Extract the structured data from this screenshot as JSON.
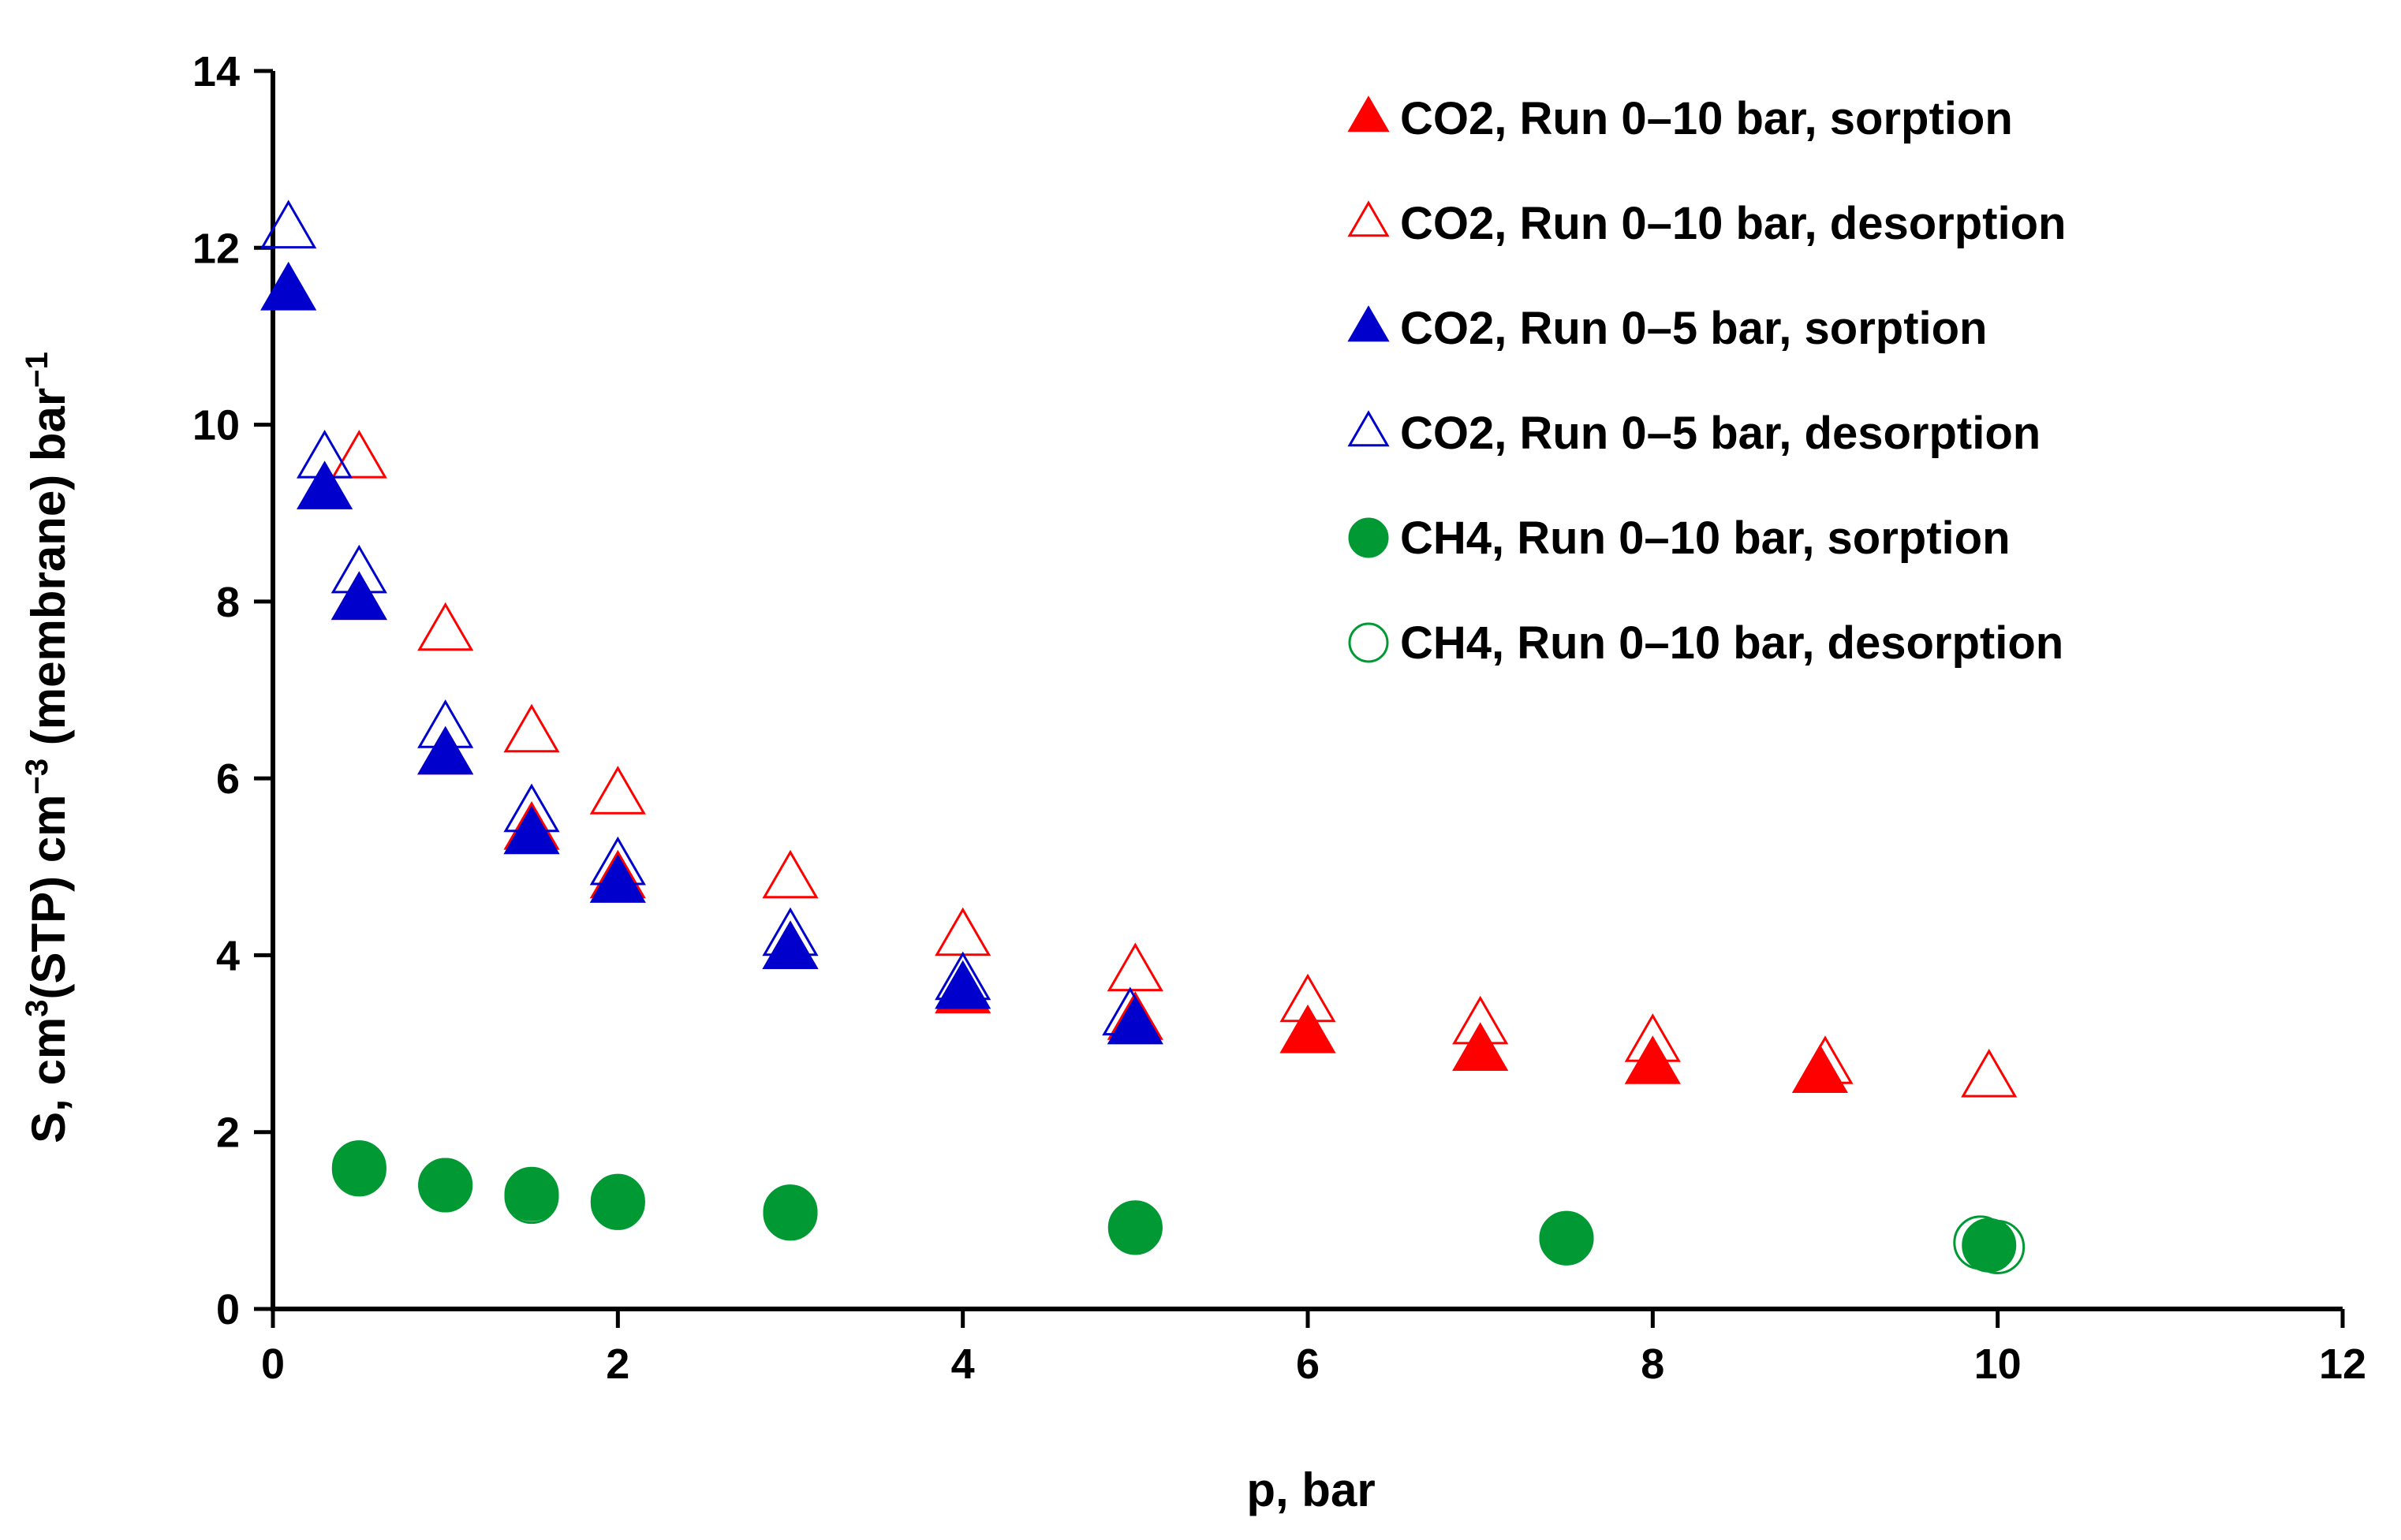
{
  "chart_data": {
    "type": "scatter",
    "title": "",
    "xlabel": "p, bar",
    "ylabel": {
      "part1": "S, cm",
      "sup1": "3",
      "part2": "(STP) cm",
      "sup2": "−3",
      "part3": " (membrane) bar",
      "sup3": "−1"
    },
    "xlim": [
      0,
      12
    ],
    "ylim": [
      0,
      14
    ],
    "xticks": [
      0,
      2,
      4,
      6,
      8,
      10,
      12
    ],
    "yticks": [
      0,
      2,
      4,
      6,
      8,
      10,
      12,
      14
    ],
    "grid": false,
    "legend_position": "top-right",
    "series": [
      {
        "name": "CO2, Run 0–10 bar, sorption",
        "marker": "triangle",
        "filled": true,
        "color": "#ff0000",
        "x": [
          0.5,
          1.0,
          1.5,
          2.0,
          3.0,
          4.0,
          5.0,
          6.0,
          7.0,
          8.0,
          8.97
        ],
        "y": [
          8.0,
          6.25,
          5.4,
          4.85,
          4.05,
          3.55,
          3.25,
          3.1,
          2.9,
          2.75,
          2.65
        ]
      },
      {
        "name": "CO2, Run 0–10 bar, desorption",
        "marker": "triangle",
        "filled": false,
        "color": "#ff0000",
        "x": [
          0.5,
          1.0,
          1.5,
          2.0,
          3.0,
          4.0,
          5.0,
          6.0,
          7.0,
          8.0,
          9.0,
          9.95
        ],
        "y": [
          9.6,
          7.65,
          6.5,
          5.8,
          4.85,
          4.2,
          3.8,
          3.45,
          3.2,
          3.0,
          2.75,
          2.6
        ]
      },
      {
        "name": "CO2, Run 0–5 bar, sorption",
        "marker": "triangle",
        "filled": true,
        "color": "#0000cc",
        "x": [
          0.09,
          0.3,
          0.5,
          1.0,
          1.5,
          2.0,
          3.0,
          4.0,
          5.0
        ],
        "y": [
          11.5,
          9.25,
          8.0,
          6.25,
          5.35,
          4.8,
          4.05,
          3.6,
          3.2
        ]
      },
      {
        "name": "CO2, Run 0–5 bar, desorption",
        "marker": "triangle",
        "filled": false,
        "color": "#0000cc",
        "x": [
          0.09,
          0.3,
          0.5,
          1.0,
          1.5,
          2.0,
          3.0,
          4.0,
          4.97
        ],
        "y": [
          12.2,
          9.6,
          8.3,
          6.55,
          5.6,
          5.0,
          4.2,
          3.7,
          3.3
        ]
      },
      {
        "name": "CH4, Run 0–10 bar, sorption",
        "marker": "circle",
        "filled": true,
        "color": "#009933",
        "x": [
          0.5,
          1.0,
          1.5,
          2.0,
          3.0,
          5.0,
          7.5,
          9.95
        ],
        "y": [
          1.6,
          1.4,
          1.3,
          1.22,
          1.1,
          0.92,
          0.8,
          0.72
        ]
      },
      {
        "name": "CH4, Run 0–10 bar, desorption",
        "marker": "circle",
        "filled": false,
        "color": "#009933",
        "x": [
          0.5,
          1.0,
          1.5,
          2.0,
          3.0,
          5.0,
          7.5,
          9.9,
          10.0
        ],
        "y": [
          1.58,
          1.4,
          1.27,
          1.2,
          1.08,
          0.92,
          0.8,
          0.75,
          0.7
        ]
      }
    ]
  }
}
